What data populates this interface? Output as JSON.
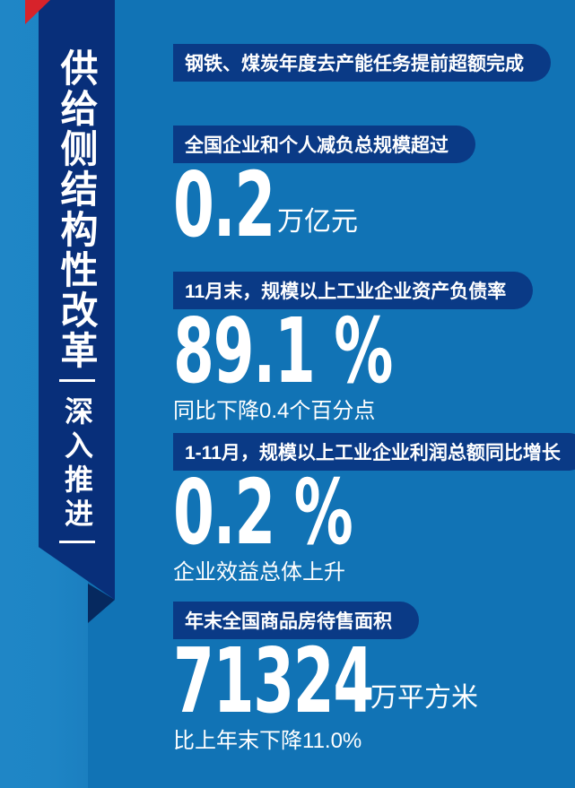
{
  "theme": {
    "background_blue": "#1173b5",
    "background_left_strip": "#1e86c6",
    "ribbon_navy": "#082f7a",
    "ribbon_fold_navy": "#06295f",
    "pill_navy": "#0a3a86",
    "accent_red": "#d7232b",
    "text_white": "#ffffff"
  },
  "ribbon": {
    "title": "供给侧结构性改革",
    "subtitle": "深入推进"
  },
  "sections": [
    {
      "label": "钢铁、煤炭年度去产能任务提前超额完成"
    },
    {
      "label": "全国企业和个人减负总规模超过",
      "value": "0.2",
      "unit": "万亿元"
    },
    {
      "label": "11月末，规模以上工业企业资产负债率",
      "value": "89.1 %",
      "note": "同比下降0.4个百分点"
    },
    {
      "label": "1-11月，规模以上工业企业利润总额同比增长",
      "value": "0.2 %",
      "note": "企业效益总体上升"
    },
    {
      "label": "年末全国商品房待售面积",
      "value": "71324",
      "unit": "万平方米",
      "note": "比上年末下降11.0%"
    }
  ]
}
